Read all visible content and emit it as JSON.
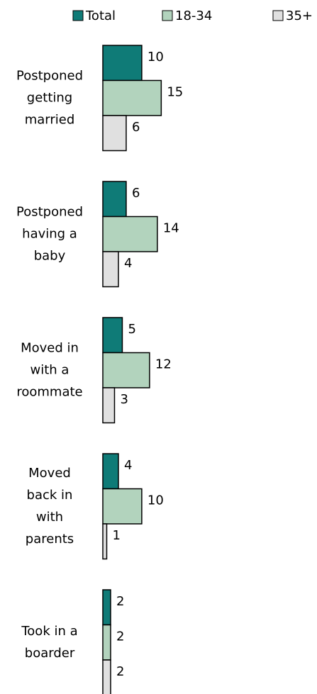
{
  "chart_data": {
    "type": "barh",
    "categories": [
      "Postponed\ngetting\nmarried",
      "Postponed\nhaving a\nbaby",
      "Moved in\nwith a\nroommate",
      "Moved\nback in\nwith\nparents",
      "Took in a\nboarder"
    ],
    "series": [
      {
        "name": "Total",
        "color": "#0f7b77",
        "values": [
          10,
          6,
          5,
          4,
          2
        ]
      },
      {
        "name": "18-34",
        "color": "#b2d3bd",
        "values": [
          15,
          14,
          12,
          10,
          2
        ]
      },
      {
        "name": "35+",
        "color": "#e0e0e0",
        "values": [
          6,
          4,
          3,
          1,
          2
        ]
      }
    ],
    "xlim": [
      0,
      55
    ],
    "legend": "top"
  }
}
